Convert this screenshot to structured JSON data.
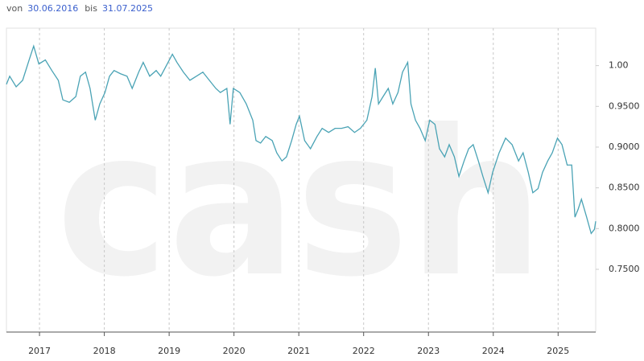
{
  "header": {
    "from_label": "von",
    "from": "30.06.2016",
    "to_label": "bis",
    "to": "31.07.2025"
  },
  "chart_data": {
    "type": "line",
    "watermark": "cash",
    "color": "#4aa3b5",
    "grid": true,
    "xlim": [
      2016.49,
      2025.58
    ],
    "xticks": [
      2017,
      2018,
      2019,
      2020,
      2021,
      2022,
      2023,
      2024,
      2025
    ],
    "ylim": [
      0.673,
      1.046
    ],
    "yticks": [
      {
        "value": 1,
        "label": "1.00"
      },
      {
        "value": 0.95,
        "label": "0.9500"
      },
      {
        "value": 0.9,
        "label": "0.9000"
      },
      {
        "value": 0.85,
        "label": "0.8500"
      },
      {
        "value": 0.8,
        "label": "0.8000"
      },
      {
        "value": 0.75,
        "label": "0.7500"
      }
    ],
    "x": [
      2016.49,
      2016.54,
      2016.64,
      2016.74,
      2016.84,
      2016.91,
      2016.99,
      2017.09,
      2017.19,
      2017.29,
      2017.36,
      2017.46,
      2017.56,
      2017.63,
      2017.71,
      2017.78,
      2017.86,
      2017.93,
      2018.01,
      2018.08,
      2018.15,
      2018.25,
      2018.35,
      2018.43,
      2018.53,
      2018.6,
      2018.7,
      2018.8,
      2018.87,
      2018.97,
      2019.05,
      2019.12,
      2019.22,
      2019.32,
      2019.42,
      2019.52,
      2019.62,
      2019.72,
      2019.79,
      2019.89,
      2019.94,
      2019.99,
      2020.09,
      2020.19,
      2020.29,
      2020.34,
      2020.41,
      2020.49,
      2020.59,
      2020.66,
      2020.74,
      2020.81,
      2020.89,
      2020.96,
      2021.01,
      2021.09,
      2021.18,
      2021.28,
      2021.36,
      2021.46,
      2021.56,
      2021.66,
      2021.76,
      2021.86,
      2021.95,
      2022.05,
      2022.13,
      2022.18,
      2022.23,
      2022.3,
      2022.38,
      2022.45,
      2022.53,
      2022.6,
      2022.68,
      2022.73,
      2022.8,
      2022.87,
      2022.95,
      2023.02,
      2023.1,
      2023.17,
      2023.25,
      2023.32,
      2023.4,
      2023.47,
      2023.55,
      2023.62,
      2023.69,
      2023.77,
      2023.84,
      2023.92,
      2023.99,
      2024.09,
      2024.19,
      2024.29,
      2024.39,
      2024.46,
      2024.54,
      2024.61,
      2024.69,
      2024.76,
      2024.84,
      2024.91,
      2024.99,
      2025.06,
      2025.14,
      2025.21,
      2025.26,
      2025.31,
      2025.36,
      2025.44,
      2025.51,
      2025.56,
      2025.58
    ],
    "values": [
      0.977,
      0.987,
      0.974,
      0.982,
      1.007,
      1.024,
      1.002,
      1.007,
      0.994,
      0.982,
      0.958,
      0.955,
      0.962,
      0.987,
      0.992,
      0.972,
      0.933,
      0.953,
      0.967,
      0.987,
      0.994,
      0.99,
      0.987,
      0.972,
      0.992,
      1.004,
      0.987,
      0.994,
      0.987,
      1.002,
      1.014,
      1.004,
      0.992,
      0.982,
      0.987,
      0.992,
      0.982,
      0.972,
      0.967,
      0.972,
      0.928,
      0.972,
      0.967,
      0.953,
      0.933,
      0.908,
      0.905,
      0.913,
      0.908,
      0.893,
      0.883,
      0.888,
      0.908,
      0.928,
      0.938,
      0.908,
      0.898,
      0.913,
      0.923,
      0.918,
      0.923,
      0.923,
      0.925,
      0.918,
      0.923,
      0.933,
      0.962,
      0.997,
      0.953,
      0.962,
      0.972,
      0.953,
      0.967,
      0.992,
      1.004,
      0.953,
      0.933,
      0.923,
      0.908,
      0.933,
      0.928,
      0.898,
      0.888,
      0.903,
      0.888,
      0.864,
      0.883,
      0.898,
      0.903,
      0.883,
      0.864,
      0.844,
      0.869,
      0.893,
      0.911,
      0.903,
      0.883,
      0.893,
      0.869,
      0.844,
      0.849,
      0.869,
      0.883,
      0.893,
      0.911,
      0.903,
      0.878,
      0.878,
      0.814,
      0.824,
      0.836,
      0.814,
      0.794,
      0.799,
      0.809
    ]
  }
}
